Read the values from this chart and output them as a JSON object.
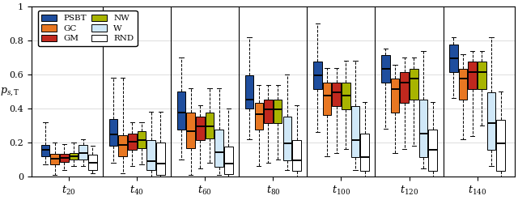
{
  "title": "",
  "ylabel": "$p_{s,\\mathrm{T}}$",
  "xlabel_groups": [
    "$t_{20}$",
    "$t_{40}$",
    "$t_{60}$",
    "$t_{80}$",
    "$t_{100}$",
    "$t_{120}$",
    "$t_{140}$"
  ],
  "ylim": [
    0,
    1.0
  ],
  "yticks": [
    0,
    0.2,
    0.4,
    0.6,
    0.8,
    1.0
  ],
  "ytick_labels": [
    "0",
    "0.2",
    "0.4",
    "0.6",
    "0.8",
    "1"
  ],
  "colors": {
    "PSBT": "#1f4e9e",
    "GC": "#e87722",
    "GM": "#c0281e",
    "NW": "#a8b400",
    "W": "#d0e8f8",
    "RND": "#ffffff"
  },
  "legend_order": [
    "PSBT",
    "GC",
    "GM",
    "NW",
    "W",
    "RND"
  ],
  "methods_order": [
    "PSBT",
    "GC",
    "GM",
    "NW",
    "W",
    "RND"
  ],
  "box_data": {
    "t20": {
      "PSBT": {
        "whislo": 0.07,
        "q1": 0.12,
        "med": 0.155,
        "q3": 0.185,
        "whishi": 0.32
      },
      "GC": {
        "whislo": 0.01,
        "q1": 0.07,
        "med": 0.105,
        "q3": 0.135,
        "whishi": 0.2
      },
      "GM": {
        "whislo": 0.04,
        "q1": 0.085,
        "med": 0.11,
        "q3": 0.135,
        "whishi": 0.19
      },
      "NW": {
        "whislo": 0.06,
        "q1": 0.1,
        "med": 0.12,
        "q3": 0.14,
        "whishi": 0.2
      },
      "W": {
        "whislo": 0.06,
        "q1": 0.1,
        "med": 0.14,
        "q3": 0.185,
        "whishi": 0.22
      },
      "RND": {
        "whislo": 0.02,
        "q1": 0.04,
        "med": 0.08,
        "q3": 0.13,
        "whishi": 0.18
      }
    },
    "t40": {
      "PSBT": {
        "whislo": 0.08,
        "q1": 0.18,
        "med": 0.25,
        "q3": 0.34,
        "whishi": 0.58
      },
      "GC": {
        "whislo": 0.02,
        "q1": 0.12,
        "med": 0.185,
        "q3": 0.245,
        "whishi": 0.58
      },
      "GM": {
        "whislo": 0.06,
        "q1": 0.155,
        "med": 0.205,
        "q3": 0.255,
        "whishi": 0.32
      },
      "NW": {
        "whislo": 0.07,
        "q1": 0.165,
        "med": 0.215,
        "q3": 0.265,
        "whishi": 0.32
      },
      "W": {
        "whislo": 0.0,
        "q1": 0.04,
        "med": 0.09,
        "q3": 0.215,
        "whishi": 0.38
      },
      "RND": {
        "whislo": 0.0,
        "q1": 0.01,
        "med": 0.075,
        "q3": 0.2,
        "whishi": 0.38
      }
    },
    "t60": {
      "PSBT": {
        "whislo": 0.1,
        "q1": 0.275,
        "med": 0.375,
        "q3": 0.5,
        "whishi": 0.7
      },
      "GC": {
        "whislo": 0.01,
        "q1": 0.165,
        "med": 0.265,
        "q3": 0.375,
        "whishi": 0.52
      },
      "GM": {
        "whislo": 0.05,
        "q1": 0.215,
        "med": 0.295,
        "q3": 0.355,
        "whishi": 0.42
      },
      "NW": {
        "whislo": 0.08,
        "q1": 0.225,
        "med": 0.295,
        "q3": 0.375,
        "whishi": 0.52
      },
      "W": {
        "whislo": 0.01,
        "q1": 0.055,
        "med": 0.145,
        "q3": 0.275,
        "whishi": 0.52
      },
      "RND": {
        "whislo": 0.0,
        "q1": 0.015,
        "med": 0.075,
        "q3": 0.175,
        "whishi": 0.4
      }
    },
    "t80": {
      "PSBT": {
        "whislo": 0.22,
        "q1": 0.4,
        "med": 0.455,
        "q3": 0.595,
        "whishi": 0.82
      },
      "GC": {
        "whislo": 0.06,
        "q1": 0.275,
        "med": 0.365,
        "q3": 0.435,
        "whishi": 0.54
      },
      "GM": {
        "whislo": 0.08,
        "q1": 0.315,
        "med": 0.395,
        "q3": 0.455,
        "whishi": 0.54
      },
      "NW": {
        "whislo": 0.1,
        "q1": 0.315,
        "med": 0.395,
        "q3": 0.455,
        "whishi": 0.54
      },
      "W": {
        "whislo": 0.04,
        "q1": 0.095,
        "med": 0.195,
        "q3": 0.355,
        "whishi": 0.6
      },
      "RND": {
        "whislo": 0.0,
        "q1": 0.035,
        "med": 0.095,
        "q3": 0.215,
        "whishi": 0.42
      }
    },
    "t100": {
      "PSBT": {
        "whislo": 0.26,
        "q1": 0.515,
        "med": 0.595,
        "q3": 0.675,
        "whishi": 0.9
      },
      "GC": {
        "whislo": 0.12,
        "q1": 0.36,
        "med": 0.475,
        "q3": 0.555,
        "whishi": 0.64
      },
      "GM": {
        "whislo": 0.14,
        "q1": 0.415,
        "med": 0.495,
        "q3": 0.555,
        "whishi": 0.64
      },
      "NW": {
        "whislo": 0.16,
        "q1": 0.395,
        "med": 0.475,
        "q3": 0.555,
        "whishi": 0.68
      },
      "W": {
        "whislo": 0.04,
        "q1": 0.115,
        "med": 0.215,
        "q3": 0.415,
        "whishi": 0.68
      },
      "RND": {
        "whislo": 0.0,
        "q1": 0.035,
        "med": 0.115,
        "q3": 0.255,
        "whishi": 0.44
      }
    },
    "t120": {
      "PSBT": {
        "whislo": 0.28,
        "q1": 0.555,
        "med": 0.635,
        "q3": 0.715,
        "whishi": 0.755
      },
      "GC": {
        "whislo": 0.14,
        "q1": 0.375,
        "med": 0.515,
        "q3": 0.575,
        "whishi": 0.66
      },
      "GM": {
        "whislo": 0.16,
        "q1": 0.435,
        "med": 0.555,
        "q3": 0.615,
        "whishi": 0.7
      },
      "NW": {
        "whislo": 0.18,
        "q1": 0.455,
        "med": 0.575,
        "q3": 0.635,
        "whishi": 0.7
      },
      "W": {
        "whislo": 0.05,
        "q1": 0.115,
        "med": 0.255,
        "q3": 0.455,
        "whishi": 0.74
      },
      "RND": {
        "whislo": 0.0,
        "q1": 0.035,
        "med": 0.155,
        "q3": 0.275,
        "whishi": 0.44
      }
    },
    "t140": {
      "PSBT": {
        "whislo": 0.46,
        "q1": 0.615,
        "med": 0.695,
        "q3": 0.775,
        "whishi": 0.82
      },
      "GC": {
        "whislo": 0.22,
        "q1": 0.455,
        "med": 0.575,
        "q3": 0.635,
        "whishi": 0.72
      },
      "GM": {
        "whislo": 0.24,
        "q1": 0.515,
        "med": 0.615,
        "q3": 0.675,
        "whishi": 0.74
      },
      "NW": {
        "whislo": 0.3,
        "q1": 0.515,
        "med": 0.615,
        "q3": 0.675,
        "whishi": 0.74
      },
      "W": {
        "whislo": 0.06,
        "q1": 0.155,
        "med": 0.315,
        "q3": 0.495,
        "whishi": 0.82
      },
      "RND": {
        "whislo": 0.0,
        "q1": 0.035,
        "med": 0.195,
        "q3": 0.335,
        "whishi": 0.5
      }
    }
  },
  "background_color": "#ffffff",
  "plot_bg_color": "#ffffff",
  "grid_color": "#d0d0d0"
}
